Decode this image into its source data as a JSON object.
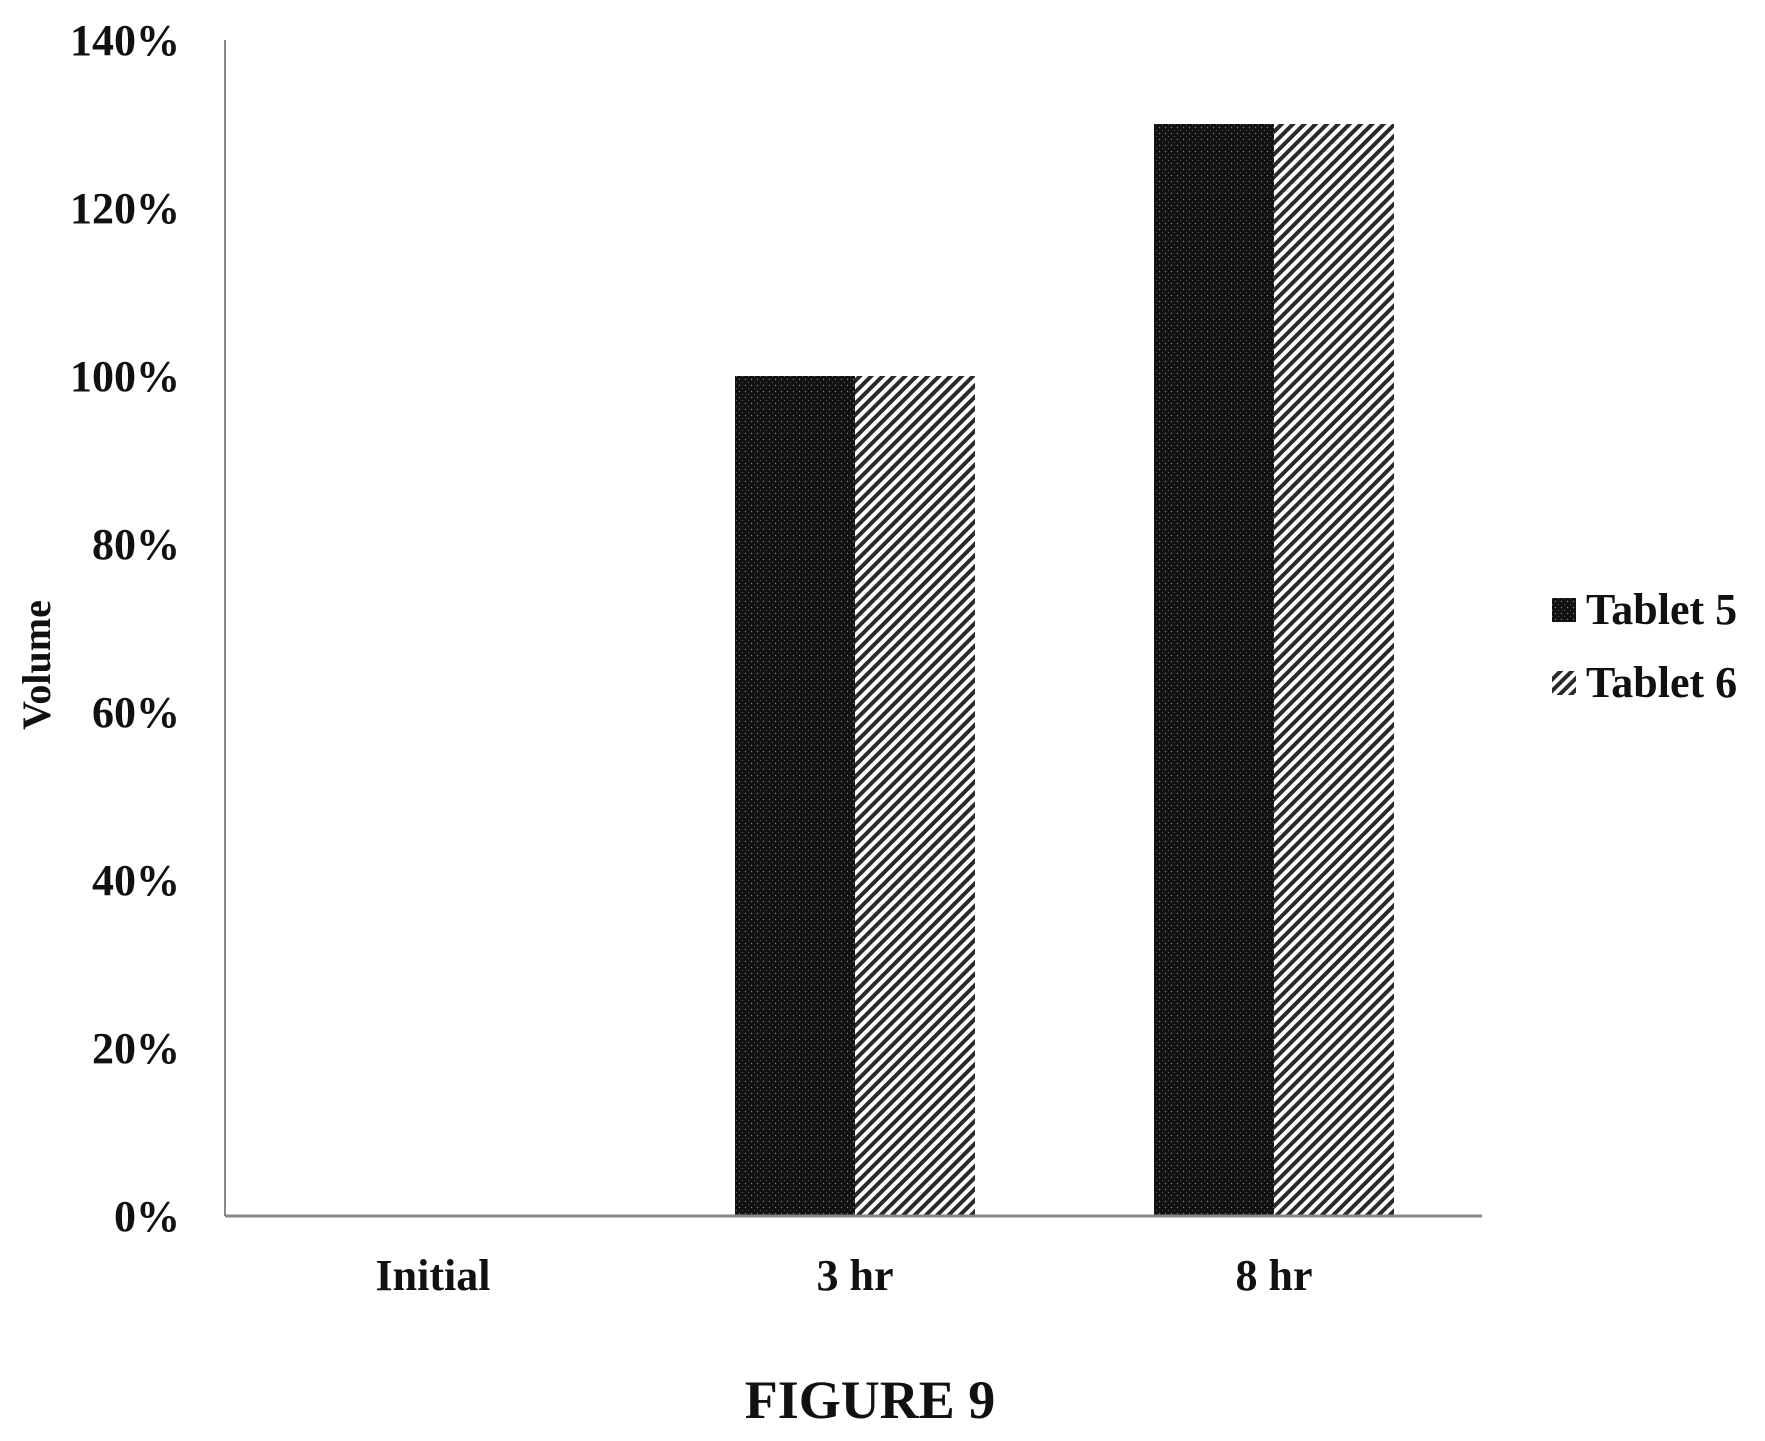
{
  "chart_data": {
    "type": "bar",
    "categories": [
      "Initial",
      "3 hr",
      "8 hr"
    ],
    "series": [
      {
        "name": "Tablet 5",
        "values": [
          0,
          100,
          130
        ]
      },
      {
        "name": "Tablet 6",
        "values": [
          0,
          100,
          130
        ]
      }
    ],
    "ylabel": "Volume",
    "xlabel": "",
    "ylim": [
      0,
      140
    ],
    "ytick_values": [
      0,
      20,
      40,
      60,
      80,
      100,
      120,
      140
    ],
    "ytick_labels": [
      "0%",
      "20%",
      "40%",
      "60%",
      "80%",
      "100%",
      "120%",
      "140%"
    ],
    "grid": false,
    "legend_position": "right",
    "colors": {
      "Tablet 5": "#111111",
      "Tablet 6": "#ffffff",
      "axis": "#888888"
    }
  },
  "caption": "FIGURE 9"
}
